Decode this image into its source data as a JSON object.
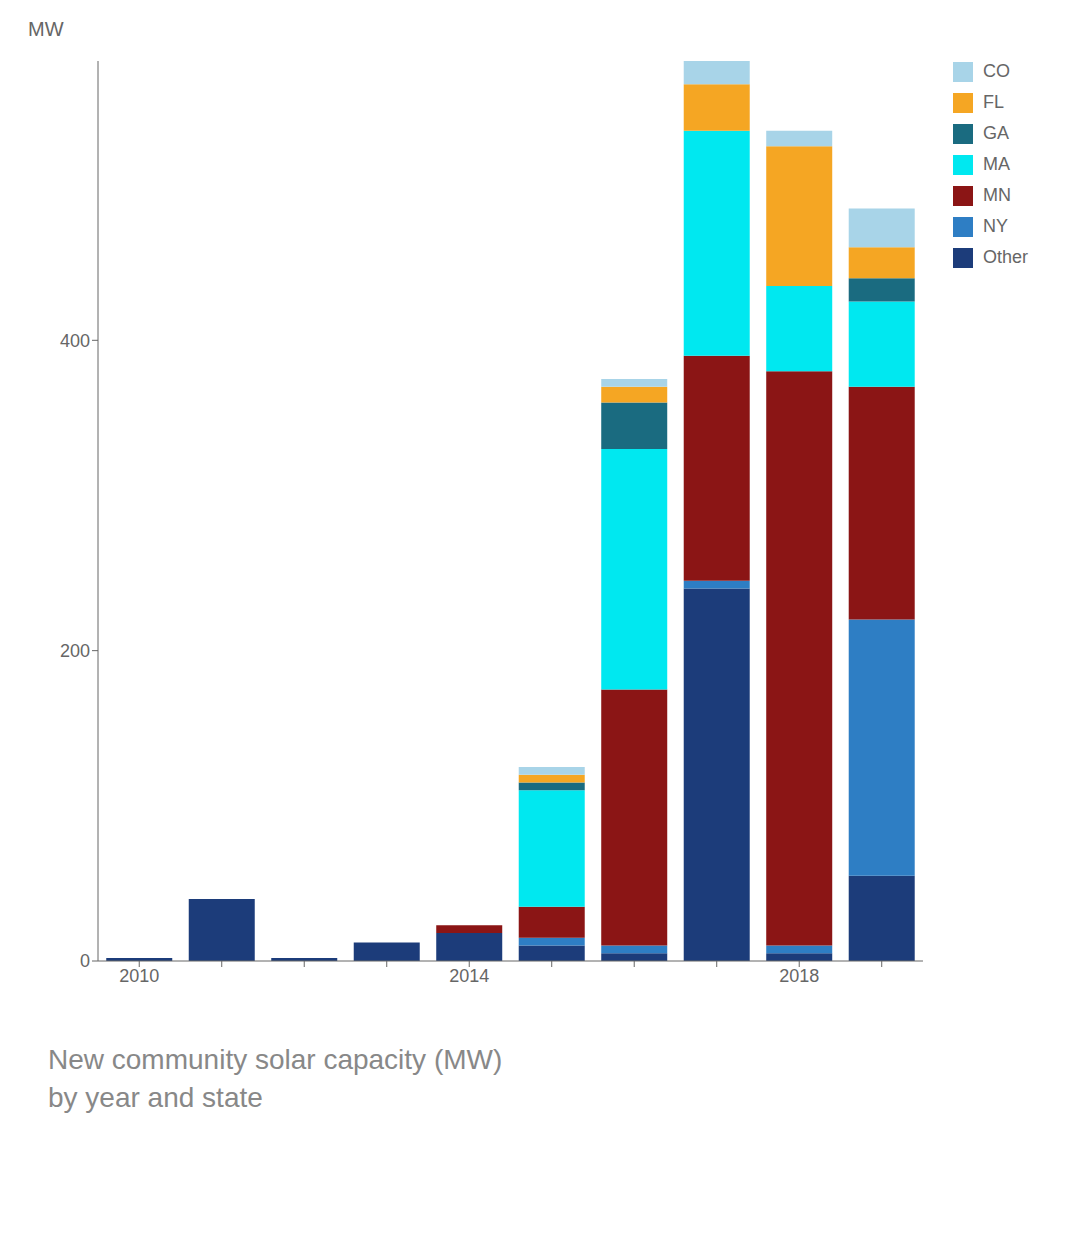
{
  "chart_data": {
    "type": "bar",
    "title": "New community solar capacity (MW)\nby year and state",
    "ylabel": "MW",
    "categories": [
      "2010",
      null,
      null,
      null,
      "2014",
      null,
      null,
      null,
      "2018",
      null
    ],
    "series": [
      {
        "name": "Other",
        "color": "#1c3c7a",
        "values": [
          2,
          40,
          2,
          12,
          18,
          10,
          5,
          240,
          5,
          55
        ]
      },
      {
        "name": "NY",
        "color": "#2e7ec4",
        "values": [
          0,
          0,
          0,
          0,
          0,
          5,
          5,
          5,
          5,
          165
        ]
      },
      {
        "name": "MN",
        "color": "#8b1515",
        "values": [
          0,
          0,
          0,
          0,
          5,
          20,
          165,
          145,
          370,
          150
        ]
      },
      {
        "name": "MA",
        "color": "#00e8f0",
        "values": [
          0,
          0,
          0,
          0,
          0,
          75,
          155,
          145,
          55,
          55
        ]
      },
      {
        "name": "GA",
        "color": "#1a6b80",
        "values": [
          0,
          0,
          0,
          0,
          0,
          5,
          30,
          0,
          0,
          15
        ]
      },
      {
        "name": "FL",
        "color": "#f5a623",
        "values": [
          0,
          0,
          0,
          0,
          0,
          5,
          10,
          30,
          90,
          20
        ]
      },
      {
        "name": "CO",
        "color": "#a8d4e8",
        "values": [
          0,
          0,
          0,
          0,
          0,
          5,
          5,
          15,
          10,
          25
        ]
      }
    ],
    "stacked": true,
    "ylim": [
      0,
      580
    ],
    "yticks": [
      0,
      200,
      400
    ],
    "grid": false,
    "legend": "right"
  }
}
